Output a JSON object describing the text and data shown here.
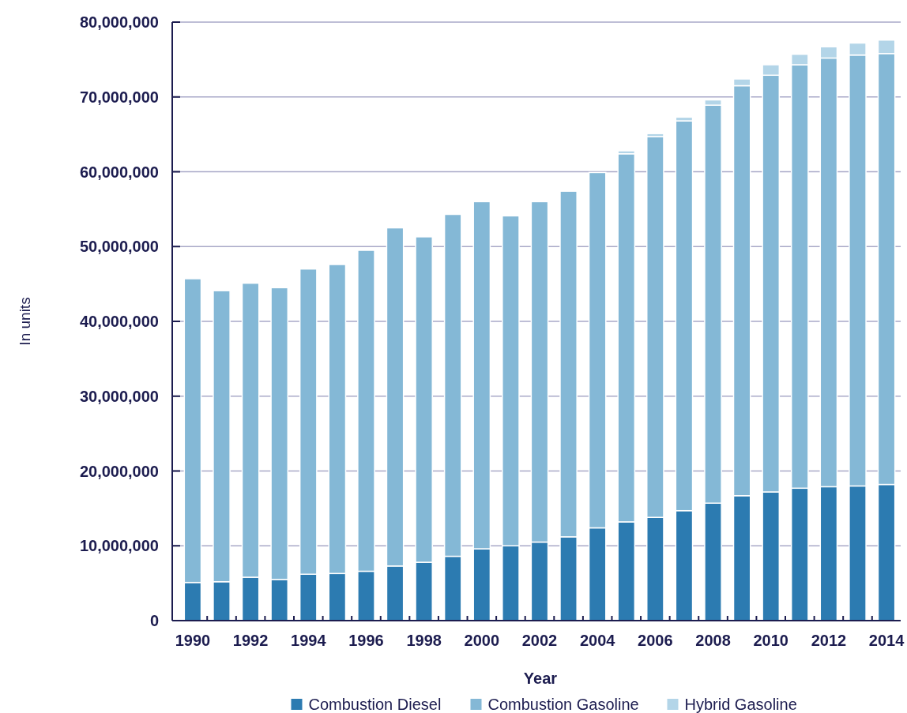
{
  "chart_data": {
    "type": "bar",
    "stacked": true,
    "xlabel": "Year",
    "ylabel": "In units",
    "categories": [
      "1990",
      null,
      "1992",
      null,
      "1994",
      null,
      "1996",
      null,
      "1998",
      null,
      "2000",
      null,
      "2002",
      null,
      "2004",
      null,
      "2006",
      null,
      "2008",
      null,
      "2010",
      null,
      "2012",
      null,
      "2014"
    ],
    "series": [
      {
        "name": "Combustion Diesel",
        "color": "#2c7bb1",
        "values": [
          5100000,
          5200000,
          5800000,
          5500000,
          6200000,
          6300000,
          6600000,
          7300000,
          7800000,
          8600000,
          9600000,
          10000000,
          10500000,
          11200000,
          12400000,
          13200000,
          13800000,
          14700000,
          15700000,
          16700000,
          17200000,
          17700000,
          17900000,
          18000000,
          18200000
        ]
      },
      {
        "name": "Combustion Gasoline",
        "color": "#84b8d6",
        "values": [
          40600000,
          38900000,
          39300000,
          39000000,
          40800000,
          41300000,
          42900000,
          45200000,
          43500000,
          45700000,
          46400000,
          44100000,
          45500000,
          46200000,
          47500000,
          49200000,
          50900000,
          52100000,
          53200000,
          54800000,
          55700000,
          56600000,
          57300000,
          57600000,
          57600000
        ]
      },
      {
        "name": "Hybrid Gasoline",
        "color": "#b3d5e8",
        "values": [
          null,
          null,
          null,
          null,
          null,
          null,
          null,
          null,
          null,
          null,
          null,
          null,
          null,
          null,
          null,
          400000,
          400000,
          500000,
          700000,
          900000,
          1400000,
          1400000,
          1500000,
          1600000,
          1800000
        ]
      }
    ],
    "ylim": [
      0,
      80000000
    ],
    "yticks": [
      {
        "value": 0,
        "label": "0"
      },
      {
        "value": 10000000,
        "label": "10,000,000"
      },
      {
        "value": 20000000,
        "label": "20,000,000"
      },
      {
        "value": 30000000,
        "label": "30,000,000"
      },
      {
        "value": 40000000,
        "label": "40,000,000"
      },
      {
        "value": 50000000,
        "label": "50,000,000"
      },
      {
        "value": 60000000,
        "label": "60,000,000"
      },
      {
        "value": 70000000,
        "label": "70,000,000"
      },
      {
        "value": 80000000,
        "label": "80,000,000"
      }
    ],
    "grid": "y",
    "legend": "bottom"
  }
}
